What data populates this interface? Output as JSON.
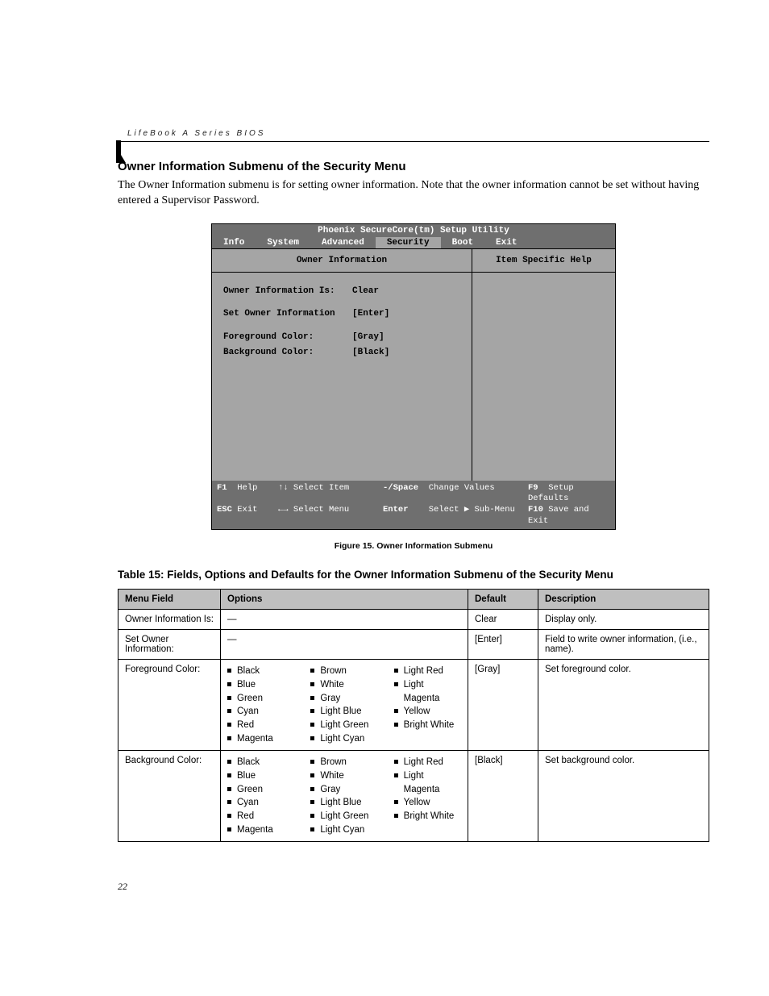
{
  "header": {
    "product_line": "LifeBook A Series BIOS"
  },
  "section": {
    "title": "Owner Information Submenu of the Security Menu",
    "body": "The Owner Information submenu is for setting owner information. Note that the owner information cannot be set without having entered a Supervisor Password."
  },
  "bios": {
    "title": "Phoenix SecureCore(tm) Setup Utility",
    "tabs": [
      "Info",
      "System",
      "Advanced",
      "Security",
      "Boot",
      "Exit"
    ],
    "active_tab": "Security",
    "left_panel_title": "Owner Information",
    "right_panel_title": "Item Specific Help",
    "fields": {
      "owner_info_is": {
        "label": "Owner Information Is:",
        "value": "Clear"
      },
      "set_owner": {
        "label": "Set Owner Information",
        "value": "[Enter]"
      },
      "fg_color": {
        "label": "Foreground Color:",
        "value": "[Gray]"
      },
      "bg_color": {
        "label": "Background Color:",
        "value": "[Black]"
      }
    },
    "footer": {
      "r1": {
        "k1": "F1",
        "t1": "Help",
        "k2": "↑↓",
        "t2": "Select Item",
        "k3": "-/Space",
        "t3": "Change Values",
        "k4": "F9",
        "t4": "Setup Defaults"
      },
      "r2": {
        "k1": "ESC",
        "t1": "Exit",
        "k2": "←→",
        "t2": "Select Menu",
        "k3": "Enter",
        "t3": "Select ▶ Sub-Menu",
        "k4": "F10",
        "t4": "Save and Exit"
      }
    }
  },
  "figure_caption": "Figure 15.   Owner Information Submenu",
  "table": {
    "title": "Table 15: Fields, Options and Defaults for the Owner Information Submenu of the Security Menu",
    "headers": [
      "Menu Field",
      "Options",
      "Default",
      "Description"
    ],
    "rows": [
      {
        "field": "Owner Information Is:",
        "options_dash": true,
        "options": [],
        "default": "Clear",
        "desc": "Display only."
      },
      {
        "field": "Set Owner Information:",
        "options_dash": true,
        "options": [],
        "default": "[Enter]",
        "desc": "Field to write owner information, (i.e., name)."
      },
      {
        "field": "Foreground Color:",
        "options_dash": false,
        "options": [
          "Black",
          "Blue",
          "Green",
          "Cyan",
          "Red",
          "Magenta",
          "Brown",
          "White",
          "Gray",
          "Light Blue",
          "Light Green",
          "Light Cyan",
          "Light Red",
          "Light Magenta",
          "Yellow",
          "Bright White"
        ],
        "default": "[Gray]",
        "desc": "Set foreground color."
      },
      {
        "field": "Background Color:",
        "options_dash": false,
        "options": [
          "Black",
          "Blue",
          "Green",
          "Cyan",
          "Red",
          "Magenta",
          "Brown",
          "White",
          "Gray",
          "Light Blue",
          "Light Green",
          "Light Cyan",
          "Light Red",
          "Light Magenta",
          "Yellow",
          "Bright White"
        ],
        "default": "[Black]",
        "desc": "Set background color."
      }
    ]
  },
  "page_number": "22",
  "colors": {
    "bios_bg": "#a5a5a5",
    "bios_dark": "#6f6f6f",
    "table_header": "#bfbfbf"
  }
}
